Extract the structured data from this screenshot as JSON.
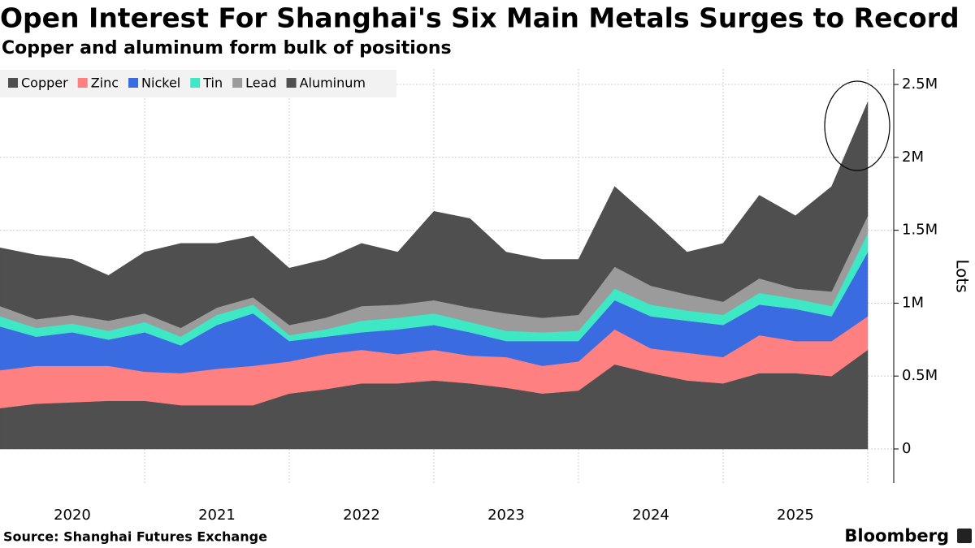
{
  "chart_data": {
    "type": "stacked_area",
    "title": "Open Interest For Shanghai's Six Main Metals Surges to Record",
    "subtitle": "Copper and aluminum form bulk of positions",
    "y_label": "Lots",
    "source": "Source: Shanghai Futures Exchange",
    "brand": "Bloomberg",
    "x": [
      2020,
      2020.25,
      2020.5,
      2020.75,
      2021,
      2021.25,
      2021.5,
      2021.75,
      2022,
      2022.25,
      2022.5,
      2022.75,
      2023,
      2023.25,
      2023.5,
      2023.75,
      2024,
      2024.25,
      2024.5,
      2024.75,
      2025,
      2025.25,
      2025.5,
      2025.75,
      2026
    ],
    "xlim": [
      2020,
      2026.18
    ],
    "xticks": [
      {
        "value": 2020.5,
        "label": "2020"
      },
      {
        "value": 2021.5,
        "label": "2021"
      },
      {
        "value": 2022.5,
        "label": "2022"
      },
      {
        "value": 2023.5,
        "label": "2023"
      },
      {
        "value": 2024.5,
        "label": "2024"
      },
      {
        "value": 2025.5,
        "label": "2025"
      }
    ],
    "xgrid": [
      2021,
      2022,
      2023,
      2024,
      2025,
      2026
    ],
    "ylim": [
      -234000,
      2606000
    ],
    "yticks": [
      0,
      {
        "value": 500000,
        "label": "0.5M"
      },
      {
        "value": 1000000,
        "label": "1M"
      },
      {
        "value": 1500000,
        "label": "1.5M"
      },
      {
        "value": 2000000,
        "label": "2M"
      },
      {
        "value": 2500000,
        "label": "2.5M"
      }
    ],
    "grid": true,
    "legend": "top-left",
    "series": [
      {
        "name": "Copper",
        "color": "#4f4f4f",
        "values": [
          280000,
          310000,
          320000,
          330000,
          330000,
          300000,
          300000,
          300000,
          380000,
          410000,
          450000,
          450000,
          470000,
          450000,
          420000,
          380000,
          400000,
          580000,
          520000,
          470000,
          450000,
          520000,
          520000,
          500000,
          680000
        ]
      },
      {
        "name": "Zinc",
        "color": "#ff8080",
        "values": [
          260000,
          260000,
          250000,
          240000,
          200000,
          220000,
          250000,
          270000,
          220000,
          240000,
          230000,
          200000,
          210000,
          190000,
          210000,
          190000,
          200000,
          240000,
          170000,
          190000,
          180000,
          260000,
          220000,
          240000,
          230000
        ]
      },
      {
        "name": "Nickel",
        "color": "#3a6be0",
        "values": [
          300000,
          200000,
          230000,
          180000,
          270000,
          190000,
          300000,
          360000,
          140000,
          120000,
          120000,
          170000,
          170000,
          160000,
          110000,
          170000,
          140000,
          200000,
          220000,
          220000,
          220000,
          210000,
          220000,
          170000,
          440000
        ]
      },
      {
        "name": "Tin",
        "color": "#3ee8c4",
        "values": [
          70000,
          60000,
          60000,
          60000,
          70000,
          60000,
          70000,
          60000,
          40000,
          50000,
          80000,
          80000,
          80000,
          70000,
          70000,
          60000,
          70000,
          80000,
          80000,
          70000,
          70000,
          80000,
          70000,
          70000,
          130000
        ]
      },
      {
        "name": "Lead",
        "color": "#9b9b9b",
        "values": [
          70000,
          60000,
          60000,
          70000,
          60000,
          60000,
          50000,
          50000,
          70000,
          80000,
          100000,
          90000,
          90000,
          100000,
          120000,
          100000,
          110000,
          150000,
          130000,
          110000,
          90000,
          100000,
          70000,
          100000,
          120000
        ]
      },
      {
        "name": "Aluminum",
        "color": "#4f4f4f",
        "values": [
          400000,
          440000,
          380000,
          310000,
          420000,
          580000,
          440000,
          420000,
          390000,
          400000,
          430000,
          360000,
          610000,
          610000,
          420000,
          400000,
          380000,
          550000,
          460000,
          290000,
          400000,
          570000,
          500000,
          720000,
          780000
        ]
      }
    ]
  }
}
